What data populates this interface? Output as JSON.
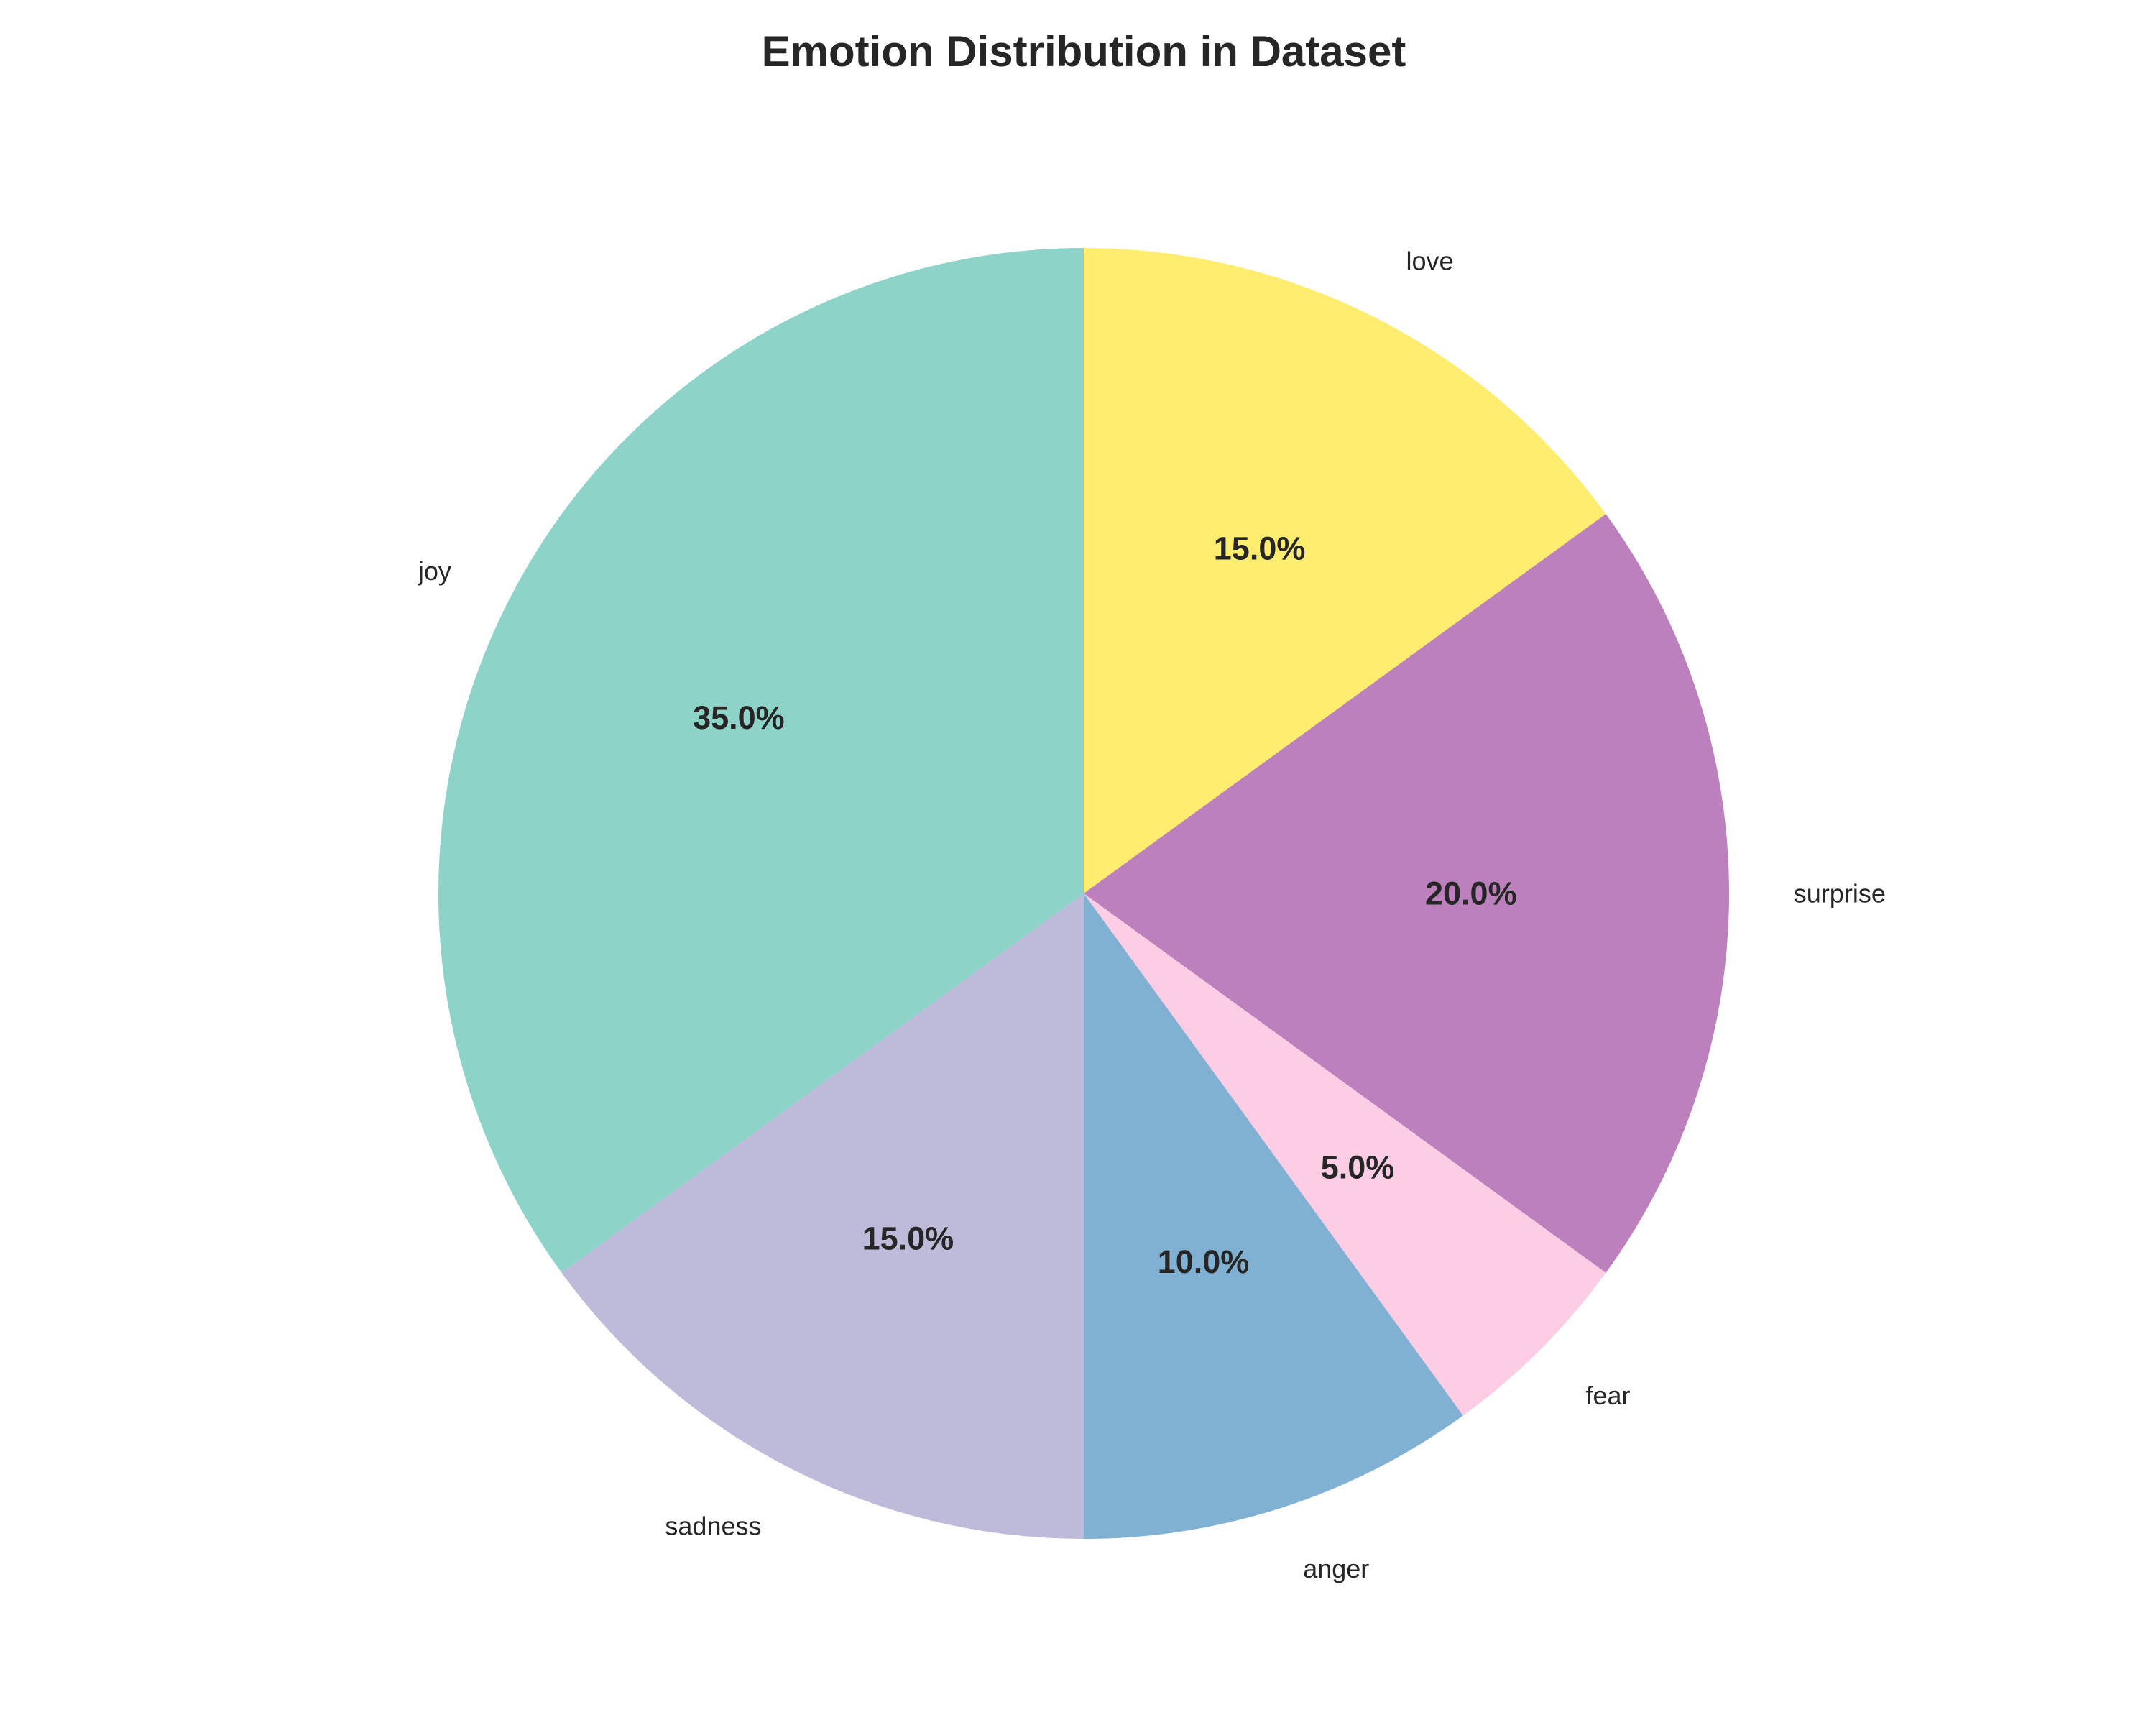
{
  "chart_data": {
    "type": "pie",
    "title": "Emotion Distribution in Dataset",
    "slices": [
      {
        "label": "love",
        "value": 15.0,
        "pct_label": "15.0%",
        "color": "#ffed6f"
      },
      {
        "label": "surprise",
        "value": 20.0,
        "pct_label": "20.0%",
        "color": "#bc80bd"
      },
      {
        "label": "fear",
        "value": 5.0,
        "pct_label": "5.0%",
        "color": "#fccde5"
      },
      {
        "label": "anger",
        "value": 10.0,
        "pct_label": "10.0%",
        "color": "#80b1d3"
      },
      {
        "label": "sadness",
        "value": 15.0,
        "pct_label": "15.0%",
        "color": "#bebada"
      },
      {
        "label": "joy",
        "value": 35.0,
        "pct_label": "35.0%",
        "color": "#8dd3c7"
      }
    ],
    "direction": "clockwise",
    "start": "top",
    "legend": "none"
  }
}
